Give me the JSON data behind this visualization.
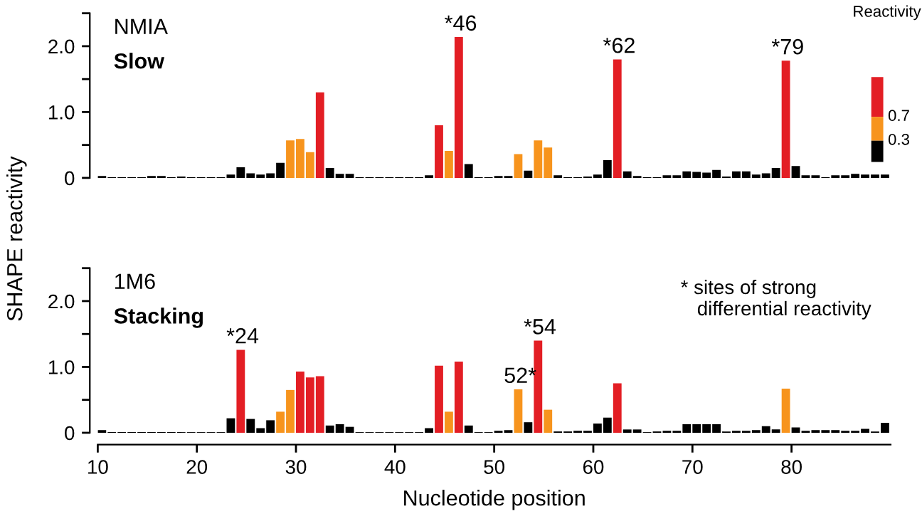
{
  "chart_data": [
    {
      "type": "bar",
      "title": "NMIA",
      "subtitle": "Slow",
      "ylabel": "SHAPE reactivity",
      "x": [
        10,
        11,
        12,
        13,
        14,
        15,
        16,
        17,
        18,
        19,
        20,
        21,
        22,
        23,
        24,
        25,
        26,
        27,
        28,
        29,
        30,
        31,
        32,
        33,
        34,
        35,
        36,
        37,
        38,
        39,
        40,
        41,
        42,
        43,
        44,
        45,
        46,
        47,
        48,
        49,
        50,
        51,
        52,
        53,
        54,
        55,
        56,
        57,
        58,
        59,
        60,
        61,
        62,
        63,
        64,
        65,
        66,
        67,
        68,
        69,
        70,
        71,
        72,
        73,
        74,
        75,
        76,
        77,
        78,
        79,
        80,
        81,
        82,
        83,
        84,
        85,
        86,
        87,
        88,
        89
      ],
      "values": [
        0.03,
        0.01,
        0.01,
        0.01,
        0.01,
        0.03,
        0.03,
        0.01,
        0.02,
        0.01,
        0.01,
        0.01,
        0.01,
        0.05,
        0.16,
        0.07,
        0.05,
        0.07,
        0.23,
        0.57,
        0.59,
        0.39,
        1.3,
        0.15,
        0.06,
        0.06,
        0.01,
        0.01,
        0.01,
        0.01,
        0.01,
        0.01,
        0.01,
        0.04,
        0.8,
        0.41,
        2.14,
        0.21,
        0.01,
        0.01,
        0.03,
        0.03,
        0.36,
        0.11,
        0.57,
        0.46,
        0.04,
        0.01,
        0.01,
        0.02,
        0.05,
        0.27,
        1.8,
        0.1,
        0.03,
        0.01,
        0.01,
        0.04,
        0.04,
        0.1,
        0.09,
        0.08,
        0.12,
        0.02,
        0.1,
        0.1,
        0.05,
        0.07,
        0.15,
        1.78,
        0.18,
        0.04,
        0.04,
        0.01,
        0.04,
        0.04,
        0.06,
        0.05,
        0.05,
        0.05
      ],
      "colors": [
        "#000000",
        "#000000",
        "#000000",
        "#000000",
        "#000000",
        "#000000",
        "#000000",
        "#000000",
        "#000000",
        "#000000",
        "#000000",
        "#000000",
        "#000000",
        "#000000",
        "#000000",
        "#000000",
        "#000000",
        "#000000",
        "#000000",
        "#f7941d",
        "#f7941d",
        "#f7941d",
        "#e31e24",
        "#000000",
        "#000000",
        "#000000",
        "#000000",
        "#000000",
        "#000000",
        "#000000",
        "#000000",
        "#000000",
        "#000000",
        "#000000",
        "#e31e24",
        "#f7941d",
        "#e31e24",
        "#000000",
        "#000000",
        "#000000",
        "#000000",
        "#000000",
        "#f7941d",
        "#000000",
        "#f7941d",
        "#f7941d",
        "#000000",
        "#000000",
        "#000000",
        "#000000",
        "#000000",
        "#000000",
        "#e31e24",
        "#000000",
        "#000000",
        "#000000",
        "#000000",
        "#000000",
        "#000000",
        "#000000",
        "#000000",
        "#000000",
        "#000000",
        "#000000",
        "#000000",
        "#000000",
        "#000000",
        "#000000",
        "#000000",
        "#e31e24",
        "#000000",
        "#000000",
        "#000000",
        "#000000",
        "#000000",
        "#000000",
        "#000000",
        "#000000",
        "#000000",
        "#000000"
      ],
      "xlim": [
        10,
        90
      ],
      "ylim": [
        0,
        2.5
      ],
      "yticks": [
        0,
        {
          "value": 0.5,
          "label": null
        },
        {
          "value": 1.0,
          "label": "1.0"
        },
        {
          "value": 1.5,
          "label": null
        },
        {
          "value": 2.0,
          "label": "2.0"
        },
        {
          "value": 2.5,
          "label": null
        }
      ],
      "tick_labels": "y",
      "annotations": [
        {
          "text": "*46",
          "x": 46,
          "y": 2.14
        },
        {
          "text": "*62",
          "x": 62,
          "y": 1.8
        },
        {
          "text": "*79",
          "x": 79,
          "y": 1.78
        },
        "Reactivity",
        "0.7",
        "0.3"
      ]
    },
    {
      "type": "bar",
      "title": "1M6",
      "subtitle": "Stacking",
      "xlabel": "Nucleotide position",
      "x": [
        10,
        11,
        12,
        13,
        14,
        15,
        16,
        17,
        18,
        19,
        20,
        21,
        22,
        23,
        24,
        25,
        26,
        27,
        28,
        29,
        30,
        31,
        32,
        33,
        34,
        35,
        36,
        37,
        38,
        39,
        40,
        41,
        42,
        43,
        44,
        45,
        46,
        47,
        48,
        49,
        50,
        51,
        52,
        53,
        54,
        55,
        56,
        57,
        58,
        59,
        60,
        61,
        62,
        63,
        64,
        65,
        66,
        67,
        68,
        69,
        70,
        71,
        72,
        73,
        74,
        75,
        76,
        77,
        78,
        79,
        80,
        81,
        82,
        83,
        84,
        85,
        86,
        87,
        88,
        89
      ],
      "values": [
        0.04,
        0.01,
        0.01,
        0.01,
        0.01,
        0.01,
        0.01,
        0.01,
        0.01,
        0.01,
        0.01,
        0.01,
        0.01,
        0.22,
        1.26,
        0.21,
        0.07,
        0.19,
        0.32,
        0.65,
        0.93,
        0.84,
        0.86,
        0.11,
        0.13,
        0.09,
        0.01,
        0.01,
        0.01,
        0.01,
        0.01,
        0.01,
        0.01,
        0.07,
        1.02,
        0.32,
        1.08,
        0.11,
        0.01,
        0.01,
        0.03,
        0.04,
        0.66,
        0.16,
        1.4,
        0.35,
        0.02,
        0.02,
        0.03,
        0.03,
        0.14,
        0.23,
        0.75,
        0.05,
        0.05,
        0.01,
        0.02,
        0.03,
        0.03,
        0.13,
        0.13,
        0.13,
        0.13,
        0.02,
        0.03,
        0.03,
        0.04,
        0.1,
        0.05,
        0.67,
        0.08,
        0.03,
        0.04,
        0.04,
        0.04,
        0.03,
        0.03,
        0.06,
        0.02,
        0.15
      ],
      "colors": [
        "#000000",
        "#000000",
        "#000000",
        "#000000",
        "#000000",
        "#000000",
        "#000000",
        "#000000",
        "#000000",
        "#000000",
        "#000000",
        "#000000",
        "#000000",
        "#000000",
        "#e31e24",
        "#000000",
        "#000000",
        "#000000",
        "#f7941d",
        "#f7941d",
        "#e31e24",
        "#e31e24",
        "#e31e24",
        "#000000",
        "#000000",
        "#000000",
        "#000000",
        "#000000",
        "#000000",
        "#000000",
        "#000000",
        "#000000",
        "#000000",
        "#000000",
        "#e31e24",
        "#f7941d",
        "#e31e24",
        "#000000",
        "#000000",
        "#000000",
        "#000000",
        "#000000",
        "#f7941d",
        "#000000",
        "#e31e24",
        "#f7941d",
        "#000000",
        "#000000",
        "#000000",
        "#000000",
        "#000000",
        "#000000",
        "#e31e24",
        "#000000",
        "#000000",
        "#000000",
        "#000000",
        "#000000",
        "#000000",
        "#000000",
        "#000000",
        "#000000",
        "#000000",
        "#000000",
        "#000000",
        "#000000",
        "#000000",
        "#000000",
        "#000000",
        "#f7941d",
        "#000000",
        "#000000",
        "#000000",
        "#000000",
        "#000000",
        "#000000",
        "#000000",
        "#000000",
        "#000000",
        "#000000"
      ],
      "xlim": [
        10,
        90
      ],
      "ylim": [
        0,
        2.5
      ],
      "xticks": [
        10,
        20,
        30,
        40,
        50,
        60,
        70,
        80
      ],
      "yticks": [
        0,
        {
          "value": 0.5,
          "label": null
        },
        {
          "value": 1.0,
          "label": "1.0"
        },
        {
          "value": 1.5,
          "label": null
        },
        {
          "value": 2.0,
          "label": "2.0"
        },
        {
          "value": 2.5,
          "label": null
        }
      ],
      "annotations": [
        {
          "text": "*24",
          "x": 24,
          "y": 1.26
        },
        {
          "text": "52*",
          "x": 52,
          "y": 0.66
        },
        {
          "text": "*54",
          "x": 54,
          "y": 1.4
        },
        "* sites of strong\n   differential reactivity"
      ]
    }
  ]
}
